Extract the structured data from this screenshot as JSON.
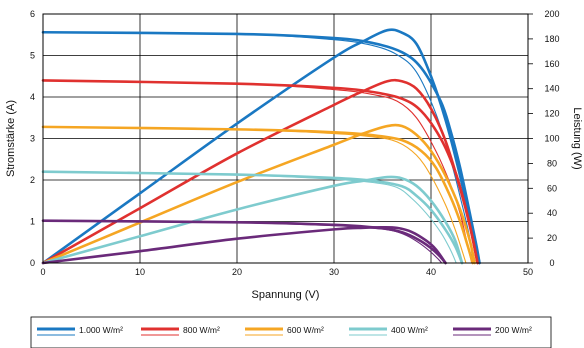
{
  "chart_data": {
    "type": "line",
    "xlabel": "Spannung (V)",
    "ylabel_left": "Stromstärke (A)",
    "ylabel_right": "Leistung (W)",
    "xlim": [
      0,
      50
    ],
    "ylim_left": [
      0,
      6
    ],
    "ylim_right": [
      0,
      200
    ],
    "x_ticks": [
      "0",
      "10",
      "20",
      "30",
      "40",
      "50"
    ],
    "y_left_ticks": [
      "0",
      "1",
      "2",
      "3",
      "4",
      "5",
      "6"
    ],
    "y_right_ticks": [
      "0",
      "20",
      "40",
      "60",
      "80",
      "100",
      "120",
      "140",
      "160",
      "180",
      "200"
    ],
    "grid": true,
    "legend_position": "bottom",
    "series": [
      {
        "name": "1.000 W/m²",
        "color": "#1a78c2",
        "current_bold": [
          [
            0,
            5.56
          ],
          [
            20,
            5.52
          ],
          [
            30,
            5.42
          ],
          [
            34,
            5.3
          ],
          [
            37,
            5.08
          ],
          [
            39,
            4.7
          ],
          [
            41,
            3.9
          ],
          [
            42,
            3.2
          ],
          [
            43,
            2.3
          ],
          [
            44,
            1.2
          ],
          [
            44.7,
            0.4
          ],
          [
            45,
            0
          ]
        ],
        "current_thin": [
          [
            0,
            5.56
          ],
          [
            20,
            5.52
          ],
          [
            30,
            5.38
          ],
          [
            34,
            5.24
          ],
          [
            36.5,
            5.02
          ],
          [
            38.5,
            4.6
          ],
          [
            40.5,
            3.6
          ],
          [
            42,
            2.5
          ],
          [
            43,
            1.6
          ],
          [
            44,
            0.6
          ],
          [
            44.3,
            0
          ]
        ],
        "power": [
          [
            0,
            0
          ],
          [
            10,
            56
          ],
          [
            20,
            112
          ],
          [
            30,
            165
          ],
          [
            33,
            178
          ],
          [
            35.5,
            187
          ],
          [
            37,
            185
          ],
          [
            38.5,
            176
          ],
          [
            40,
            150
          ],
          [
            41.5,
            115
          ],
          [
            43,
            70
          ],
          [
            44,
            35
          ],
          [
            45,
            0
          ]
        ]
      },
      {
        "name": "800 W/m²",
        "color": "#e0312f",
        "current_bold": [
          [
            0,
            4.4
          ],
          [
            20,
            4.32
          ],
          [
            30,
            4.22
          ],
          [
            34,
            4.12
          ],
          [
            37,
            3.96
          ],
          [
            39,
            3.66
          ],
          [
            41,
            3.0
          ],
          [
            42.5,
            2.2
          ],
          [
            43.5,
            1.4
          ],
          [
            44.3,
            0.6
          ],
          [
            44.8,
            0
          ]
        ],
        "current_thin": [
          [
            0,
            4.4
          ],
          [
            20,
            4.32
          ],
          [
            30,
            4.18
          ],
          [
            34,
            4.06
          ],
          [
            36.5,
            3.9
          ],
          [
            38.5,
            3.5
          ],
          [
            40.5,
            2.7
          ],
          [
            42,
            1.9
          ],
          [
            43,
            1.2
          ],
          [
            43.8,
            0.4
          ],
          [
            44.2,
            0
          ]
        ],
        "power": [
          [
            0,
            0
          ],
          [
            10,
            44
          ],
          [
            20,
            88
          ],
          [
            30,
            127
          ],
          [
            33,
            138
          ],
          [
            35.5,
            146
          ],
          [
            37,
            146
          ],
          [
            38.5,
            140
          ],
          [
            40,
            124
          ],
          [
            41.5,
            98
          ],
          [
            43,
            60
          ],
          [
            44,
            30
          ],
          [
            44.8,
            0
          ]
        ]
      },
      {
        "name": "600 W/m²",
        "color": "#f5a623",
        "current_bold": [
          [
            0,
            3.28
          ],
          [
            20,
            3.22
          ],
          [
            30,
            3.15
          ],
          [
            34,
            3.08
          ],
          [
            37,
            2.96
          ],
          [
            39,
            2.7
          ],
          [
            40.5,
            2.3
          ],
          [
            42,
            1.6
          ],
          [
            43,
            1.0
          ],
          [
            43.8,
            0.4
          ],
          [
            44.3,
            0
          ]
        ],
        "current_thin": [
          [
            0,
            3.28
          ],
          [
            20,
            3.22
          ],
          [
            30,
            3.12
          ],
          [
            34,
            3.04
          ],
          [
            36.5,
            2.92
          ],
          [
            38.5,
            2.6
          ],
          [
            40,
            2.1
          ],
          [
            41.5,
            1.4
          ],
          [
            42.5,
            0.8
          ],
          [
            43.2,
            0.3
          ],
          [
            43.6,
            0
          ]
        ],
        "power": [
          [
            0,
            0
          ],
          [
            10,
            32.5
          ],
          [
            20,
            65
          ],
          [
            30,
            95
          ],
          [
            33,
            104
          ],
          [
            35.5,
            110
          ],
          [
            37,
            110
          ],
          [
            38.5,
            103
          ],
          [
            40,
            90
          ],
          [
            41.5,
            70
          ],
          [
            43,
            43
          ],
          [
            44,
            18
          ],
          [
            44.5,
            0
          ]
        ]
      },
      {
        "name": "400 W/m²",
        "color": "#7ecbce",
        "current_bold": [
          [
            0,
            2.2
          ],
          [
            20,
            2.13
          ],
          [
            30,
            2.05
          ],
          [
            34,
            1.98
          ],
          [
            37,
            1.85
          ],
          [
            38.5,
            1.62
          ],
          [
            40,
            1.28
          ],
          [
            41.5,
            0.8
          ],
          [
            42.5,
            0.4
          ],
          [
            43.2,
            0
          ]
        ],
        "current_thin": [
          [
            0,
            2.2
          ],
          [
            20,
            2.12
          ],
          [
            30,
            2.02
          ],
          [
            34,
            1.94
          ],
          [
            36.5,
            1.82
          ],
          [
            38,
            1.56
          ],
          [
            39.5,
            1.2
          ],
          [
            41,
            0.74
          ],
          [
            42,
            0.32
          ],
          [
            42.6,
            0
          ]
        ],
        "power": [
          [
            0,
            0
          ],
          [
            10,
            21.5
          ],
          [
            20,
            43
          ],
          [
            30,
            62
          ],
          [
            33,
            66
          ],
          [
            35.5,
            69
          ],
          [
            37,
            68
          ],
          [
            38.5,
            62
          ],
          [
            40,
            50
          ],
          [
            41.5,
            33
          ],
          [
            42.5,
            18
          ],
          [
            43.2,
            0
          ]
        ]
      },
      {
        "name": "200 W/m²",
        "color": "#6a2a7a",
        "current_bold": [
          [
            0,
            1.02
          ],
          [
            20,
            0.98
          ],
          [
            30,
            0.92
          ],
          [
            34,
            0.86
          ],
          [
            36,
            0.8
          ],
          [
            37.5,
            0.7
          ],
          [
            39,
            0.52
          ],
          [
            40.2,
            0.32
          ],
          [
            41,
            0.14
          ],
          [
            41.5,
            0
          ]
        ],
        "current_thin": [
          [
            0,
            1.02
          ],
          [
            20,
            0.97
          ],
          [
            30,
            0.9
          ],
          [
            34,
            0.84
          ],
          [
            36,
            0.78
          ],
          [
            37.5,
            0.66
          ],
          [
            38.8,
            0.48
          ],
          [
            40,
            0.26
          ],
          [
            40.8,
            0.08
          ],
          [
            41.1,
            0
          ]
        ],
        "power": [
          [
            0,
            0
          ],
          [
            10,
            9.5
          ],
          [
            20,
            19.5
          ],
          [
            30,
            27
          ],
          [
            33,
            28.3
          ],
          [
            35,
            28.7
          ],
          [
            36.5,
            28.2
          ],
          [
            38,
            25
          ],
          [
            39.5,
            18
          ],
          [
            40.5,
            11
          ],
          [
            41.5,
            0
          ]
        ]
      }
    ]
  }
}
